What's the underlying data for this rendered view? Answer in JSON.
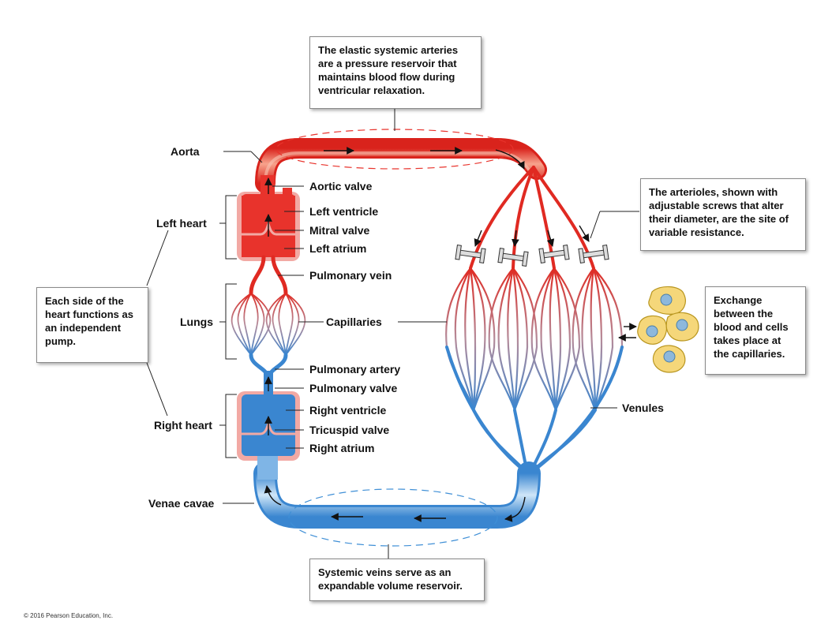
{
  "boxes": {
    "arteries": "The elastic systemic arteries are a pressure reservoir that maintains blood flow during ventricular relaxation.",
    "arterioles": "The arterioles, shown with adjustable screws that alter their diameter, are the site of variable resistance.",
    "each_side": "Each side of the heart functions as an independent pump.",
    "exchange": "Exchange between the blood and cells takes place at the capillaries.",
    "veins": "Systemic veins serve as an expandable volume reservoir."
  },
  "labels": {
    "aorta": "Aorta",
    "aortic_valve": "Aortic valve",
    "left_heart": "Left heart",
    "left_ventricle": "Left ventricle",
    "mitral_valve": "Mitral valve",
    "left_atrium": "Left atrium",
    "pulmonary_vein": "Pulmonary vein",
    "lungs": "Lungs",
    "capillaries": "Capillaries",
    "pulmonary_artery": "Pulmonary artery",
    "pulmonary_valve": "Pulmonary valve",
    "right_heart": "Right heart",
    "right_ventricle": "Right ventricle",
    "tricuspid_valve": "Tricuspid valve",
    "right_atrium": "Right atrium",
    "venae_cavae": "Venae cavae",
    "venules": "Venules"
  },
  "copyright": "© 2016 Pearson Education, Inc.",
  "colors": {
    "artery": "#e8332c",
    "artery_light": "#f5a08a",
    "vein": "#3f8fd6",
    "vein_light": "#a9d0f2",
    "heart_outline": "#f2a9a4",
    "cell": "#f5d77a"
  }
}
